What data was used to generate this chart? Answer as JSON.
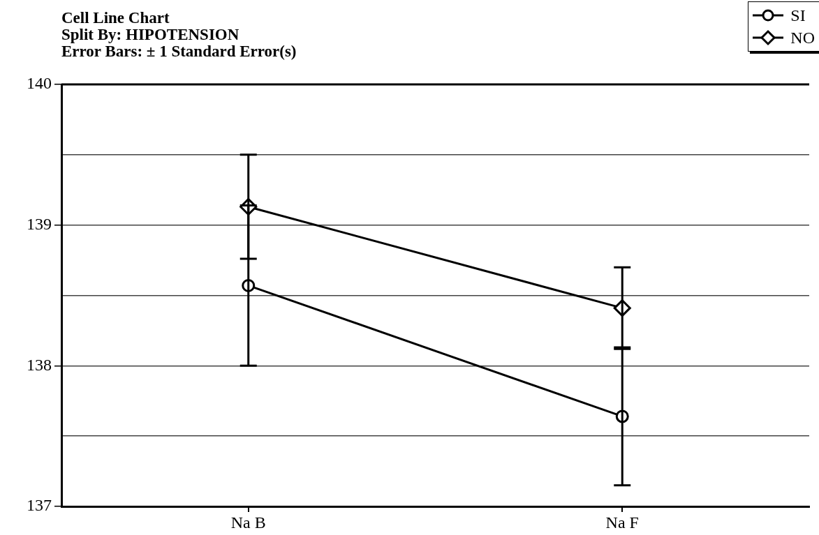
{
  "chart_data": {
    "type": "line",
    "title": "Cell Line Chart",
    "subtitle": "Split By: HIPOTENSION",
    "annotations": [
      "Error Bars: ± 1 Standard Error(s)"
    ],
    "categories": [
      "Na B",
      "Na F"
    ],
    "series": [
      {
        "name": "SI",
        "color": "#000000",
        "marker": "circle",
        "values": [
          138.57,
          137.64
        ],
        "errors": [
          0.57,
          0.49
        ]
      },
      {
        "name": "NO",
        "color": "#000000",
        "marker": "diamond",
        "values": [
          139.13,
          138.41
        ],
        "errors": [
          0.37,
          0.29
        ]
      }
    ],
    "ylim": [
      137,
      140
    ],
    "yticks": [
      137,
      {
        "value": 137.5,
        "label": null
      },
      138,
      {
        "value": 138.5,
        "label": null
      },
      139,
      {
        "value": 139.5,
        "label": null
      },
      140
    ],
    "grid": "y",
    "legend": "top right",
    "line_style": "solid"
  }
}
